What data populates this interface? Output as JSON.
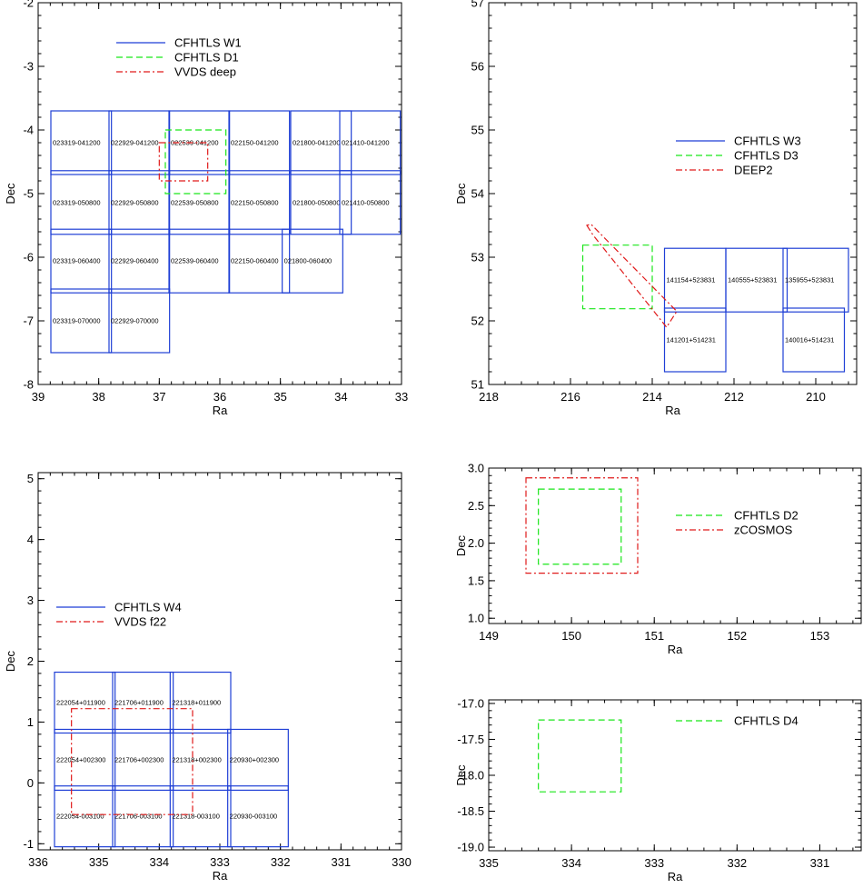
{
  "colors": {
    "blue": "#1f3fd6",
    "green": "#19e619",
    "red": "#e01a1a"
  },
  "chart_data": [
    {
      "id": "p1",
      "type": "line",
      "xlabel": "Ra",
      "ylabel": "Dec",
      "xlim": [
        39,
        33
      ],
      "ylim": [
        -8,
        -2
      ],
      "xticks": [
        "39",
        "38",
        "37",
        "36",
        "35",
        "34",
        "33"
      ],
      "yticks": [
        "-8",
        "-7",
        "-6",
        "-5",
        "-4",
        "-3",
        "-2"
      ],
      "legend_position": "top-center",
      "series": [
        {
          "name": "CFHTLS W1",
          "style": "solid",
          "color": "#1f3fd6",
          "rects": [
            {
              "x1": 38.79,
              "x2": 37.79,
              "y1": -4.7,
              "y2": -3.7,
              "label": "023319-041200"
            },
            {
              "x1": 37.83,
              "x2": 36.83,
              "y1": -4.7,
              "y2": -3.7,
              "label": "022929-041200"
            },
            {
              "x1": 36.84,
              "x2": 35.84,
              "y1": -4.7,
              "y2": -3.7,
              "label": "022539-041200"
            },
            {
              "x1": 35.85,
              "x2": 34.85,
              "y1": -4.7,
              "y2": -3.7,
              "label": "022150-041200"
            },
            {
              "x1": 34.83,
              "x2": 33.83,
              "y1": -4.7,
              "y2": -3.7,
              "label": "021800-041200"
            },
            {
              "x1": 34.02,
              "x2": 33.02,
              "y1": -4.7,
              "y2": -3.7,
              "label": "021410-041200"
            },
            {
              "x1": 38.79,
              "x2": 37.79,
              "y1": -5.64,
              "y2": -4.64,
              "label": "023319-050800"
            },
            {
              "x1": 37.83,
              "x2": 36.83,
              "y1": -5.64,
              "y2": -4.64,
              "label": "022929-050800"
            },
            {
              "x1": 36.84,
              "x2": 35.84,
              "y1": -5.64,
              "y2": -4.64,
              "label": "022539-050800"
            },
            {
              "x1": 35.85,
              "x2": 34.85,
              "y1": -5.64,
              "y2": -4.64,
              "label": "022150-050800"
            },
            {
              "x1": 34.83,
              "x2": 33.83,
              "y1": -5.64,
              "y2": -4.64,
              "label": "021800-050800"
            },
            {
              "x1": 34.02,
              "x2": 33.02,
              "y1": -5.64,
              "y2": -4.64,
              "label": "021410-050800"
            },
            {
              "x1": 38.79,
              "x2": 37.79,
              "y1": -6.56,
              "y2": -5.56,
              "label": "023319-060400"
            },
            {
              "x1": 37.83,
              "x2": 36.83,
              "y1": -6.56,
              "y2": -5.56,
              "label": "022929-060400"
            },
            {
              "x1": 36.84,
              "x2": 35.84,
              "y1": -6.56,
              "y2": -5.56,
              "label": "022539-060400"
            },
            {
              "x1": 35.85,
              "x2": 34.85,
              "y1": -6.56,
              "y2": -5.56,
              "label": "022150-060400"
            },
            {
              "x1": 34.97,
              "x2": 33.97,
              "y1": -6.56,
              "y2": -5.56,
              "label": "021800-060400"
            },
            {
              "x1": 38.79,
              "x2": 37.79,
              "y1": -7.5,
              "y2": -6.5,
              "label": "023319-070000"
            },
            {
              "x1": 37.83,
              "x2": 36.83,
              "y1": -7.5,
              "y2": -6.5,
              "label": "022929-070000"
            }
          ]
        },
        {
          "name": "CFHTLS D1",
          "style": "dashed",
          "color": "#19e619",
          "rects": [
            {
              "x1": 36.9,
              "x2": 35.9,
              "y1": -5.0,
              "y2": -4.0
            }
          ]
        },
        {
          "name": "VVDS deep",
          "style": "dashdot",
          "color": "#e01a1a",
          "rects": [
            {
              "x1": 37.0,
              "x2": 36.2,
              "y1": -4.8,
              "y2": -4.2
            }
          ]
        }
      ]
    },
    {
      "id": "p2",
      "type": "line",
      "xlabel": "Ra",
      "ylabel": "Dec",
      "xlim": [
        218,
        209
      ],
      "ylim": [
        51,
        57
      ],
      "xticks": [
        "218",
        "216",
        "214",
        "212",
        "210"
      ],
      "yticks": [
        "51",
        "52",
        "53",
        "54",
        "55",
        "56",
        "57"
      ],
      "legend_position": "middle-right",
      "series": [
        {
          "name": "CFHTLS W3",
          "style": "solid",
          "color": "#1f3fd6",
          "rects": [
            {
              "x1": 213.7,
              "x2": 212.2,
              "y1": 52.14,
              "y2": 53.14,
              "label": "141154+523831"
            },
            {
              "x1": 212.2,
              "x2": 210.7,
              "y1": 52.14,
              "y2": 53.14,
              "label": "140555+523831"
            },
            {
              "x1": 210.8,
              "x2": 209.2,
              "y1": 52.14,
              "y2": 53.14,
              "label": "135955+523831"
            },
            {
              "x1": 213.7,
              "x2": 212.2,
              "y1": 51.2,
              "y2": 52.2,
              "label": "141201+514231"
            },
            {
              "x1": 210.8,
              "x2": 209.3,
              "y1": 51.2,
              "y2": 52.2,
              "label": "140016+514231"
            }
          ]
        },
        {
          "name": "CFHTLS D3",
          "style": "dashed",
          "color": "#19e619",
          "rects": [
            {
              "x1": 215.7,
              "x2": 214.0,
              "y1": 52.19,
              "y2": 53.19
            }
          ]
        },
        {
          "name": "DEEP2",
          "style": "dashdot",
          "color": "#e01a1a",
          "polygon": [
            [
              215.6,
              53.5
            ],
            [
              215.45,
              53.35
            ],
            [
              213.65,
              51.9
            ],
            [
              213.4,
              52.15
            ],
            [
              215.5,
              53.52
            ]
          ]
        }
      ]
    },
    {
      "id": "p3",
      "type": "line",
      "xlabel": "Ra",
      "ylabel": "Dec",
      "xlim": [
        336,
        330
      ],
      "ylim": [
        -1.1,
        5.1
      ],
      "xticks": [
        "336",
        "335",
        "334",
        "333",
        "332",
        "331",
        "330"
      ],
      "yticks": [
        "-1",
        "0",
        "1",
        "2",
        "3",
        "4",
        "5"
      ],
      "legend_position": "middle-left",
      "series": [
        {
          "name": "CFHTLS W4",
          "style": "solid",
          "color": "#1f3fd6",
          "rects": [
            {
              "x1": 335.73,
              "x2": 334.73,
              "y1": 0.82,
              "y2": 1.82,
              "label": "222054+011900"
            },
            {
              "x1": 334.77,
              "x2": 333.77,
              "y1": 0.82,
              "y2": 1.82,
              "label": "221706+011900"
            },
            {
              "x1": 333.82,
              "x2": 332.82,
              "y1": 0.82,
              "y2": 1.82,
              "label": "221318+011900"
            },
            {
              "x1": 335.73,
              "x2": 334.73,
              "y1": -0.12,
              "y2": 0.88,
              "label": "222054+002300"
            },
            {
              "x1": 334.77,
              "x2": 333.77,
              "y1": -0.12,
              "y2": 0.88,
              "label": "221706+002300"
            },
            {
              "x1": 333.82,
              "x2": 332.82,
              "y1": -0.12,
              "y2": 0.88,
              "label": "221318+002300"
            },
            {
              "x1": 332.87,
              "x2": 331.87,
              "y1": -0.12,
              "y2": 0.88,
              "label": "220930+002300"
            },
            {
              "x1": 335.73,
              "x2": 334.73,
              "y1": -1.05,
              "y2": -0.05,
              "label": "222054-003100"
            },
            {
              "x1": 334.77,
              "x2": 333.77,
              "y1": -1.05,
              "y2": -0.05,
              "label": "221706-003100"
            },
            {
              "x1": 333.82,
              "x2": 332.82,
              "y1": -1.05,
              "y2": -0.05,
              "label": "221318-003100"
            },
            {
              "x1": 332.87,
              "x2": 331.87,
              "y1": -1.05,
              "y2": -0.05,
              "label": "220930-003100"
            }
          ]
        },
        {
          "name": "VVDS f22",
          "style": "dashdot",
          "color": "#e01a1a",
          "rects": [
            {
              "x1": 335.45,
              "x2": 333.45,
              "y1": -0.52,
              "y2": 1.22
            }
          ]
        }
      ]
    },
    {
      "id": "p4",
      "type": "line",
      "xlabel": "Ra",
      "ylabel": "Dec",
      "xlim": [
        149,
        153.5
      ],
      "ylim": [
        0.93,
        3.0
      ],
      "xticks": [
        "149",
        "150",
        "151",
        "152",
        "153"
      ],
      "yticks": [
        "1.0",
        "1.5",
        "2.0",
        "2.5",
        "3.0"
      ],
      "legend_position": "middle-right",
      "series": [
        {
          "name": "CFHTLS D2",
          "style": "dashed",
          "color": "#19e619",
          "rects": [
            {
              "x1": 149.6,
              "x2": 150.6,
              "y1": 1.72,
              "y2": 2.72
            }
          ]
        },
        {
          "name": "zCOSMOS",
          "style": "dashdot",
          "color": "#e01a1a",
          "rects": [
            {
              "x1": 149.45,
              "x2": 150.8,
              "y1": 1.6,
              "y2": 2.87
            }
          ]
        }
      ]
    },
    {
      "id": "p5",
      "type": "line",
      "xlabel": "Ra",
      "ylabel": "Dec",
      "xlim": [
        335,
        330.5
      ],
      "ylim": [
        -19.05,
        -16.95
      ],
      "xticks": [
        "335",
        "334",
        "333",
        "332",
        "331"
      ],
      "yticks": [
        "-19.0",
        "-18.5",
        "-18.0",
        "-17.5",
        "-17.0"
      ],
      "legend_position": "middle-right",
      "series": [
        {
          "name": "CFHTLS D4",
          "style": "dashed",
          "color": "#19e619",
          "rects": [
            {
              "x1": 334.4,
              "x2": 333.4,
              "y1": -18.23,
              "y2": -17.23
            }
          ]
        }
      ]
    }
  ]
}
